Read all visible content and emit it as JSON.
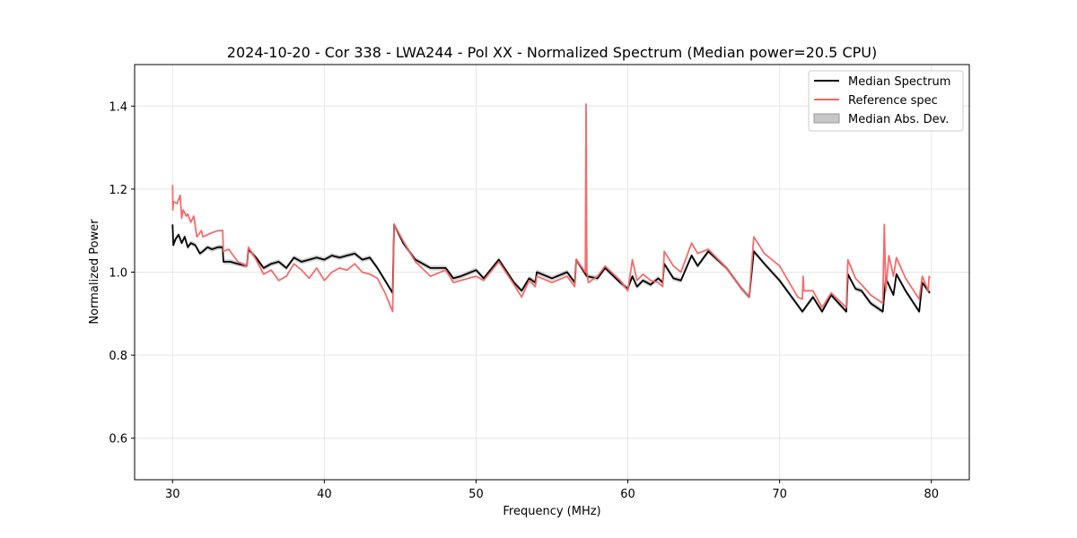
{
  "chart_data": {
    "type": "line",
    "title": "2024-10-20 - Cor 338 - LWA244 - Pol XX - Normalized Spectrum (Median power=20.5 CPU)",
    "xlabel": "Frequency (MHz)",
    "ylabel": "Normalized Power",
    "xlim": [
      27.5,
      82.5
    ],
    "ylim": [
      0.5,
      1.5
    ],
    "xticks": [
      30,
      40,
      50,
      60,
      70,
      80
    ],
    "yticks": [
      0.6,
      0.8,
      1.0,
      1.2,
      1.4
    ],
    "xtick_labels": [
      "30",
      "40",
      "50",
      "60",
      "70",
      "80"
    ],
    "ytick_labels": [
      "0.6",
      "0.8",
      "1.0",
      "1.2",
      "1.4"
    ],
    "grid": true,
    "legend_position": "top-right",
    "legend": [
      "Median Spectrum",
      "Reference spec",
      "Median Abs. Dev."
    ],
    "colors": {
      "median": "#000000",
      "reference": "#f46464",
      "mad_fill": "#aaaaaa"
    },
    "series": [
      {
        "name": "Median Spectrum",
        "x": [
          30,
          30.05,
          30.2,
          30.4,
          30.6,
          30.8,
          31.0,
          31.2,
          31.5,
          31.8,
          32.0,
          32.3,
          32.6,
          33.0,
          33.3,
          33.35,
          33.8,
          34.3,
          34.9,
          35.0,
          35.5,
          36.0,
          36.5,
          37.0,
          37.5,
          38.0,
          38.5,
          39.0,
          39.5,
          40.0,
          40.5,
          41.0,
          41.5,
          42.0,
          42.5,
          43.0,
          43.5,
          44.0,
          44.5,
          44.6,
          45.2,
          46.0,
          47.0,
          48.0,
          48.5,
          49.0,
          50.0,
          50.5,
          51.5,
          52.5,
          53.0,
          53.5,
          53.9,
          54.0,
          55.0,
          56.0,
          56.5,
          56.6,
          57.3,
          58.0,
          58.5,
          59.5,
          60.0,
          60.3,
          60.6,
          61.0,
          61.5,
          62.0,
          62.3,
          62.4,
          63.0,
          63.5,
          64.2,
          64.6,
          65.3,
          66.5,
          67.5,
          68.0,
          68.3,
          69.0,
          70.0,
          71.2,
          71.5,
          72.2,
          72.8,
          73.4,
          74.4,
          74.5,
          75.0,
          75.4,
          76.0,
          76.8,
          77.0,
          77.5,
          77.7,
          78.3,
          79.2,
          79.4,
          79.9
        ],
        "values": [
          1.115,
          1.065,
          1.08,
          1.09,
          1.07,
          1.085,
          1.06,
          1.07,
          1.065,
          1.045,
          1.05,
          1.06,
          1.055,
          1.06,
          1.06,
          1.025,
          1.025,
          1.02,
          1.015,
          1.055,
          1.035,
          1.01,
          1.02,
          1.025,
          1.01,
          1.035,
          1.025,
          1.03,
          1.035,
          1.03,
          1.04,
          1.035,
          1.04,
          1.045,
          1.03,
          1.035,
          1.01,
          0.98,
          0.95,
          1.115,
          1.07,
          1.03,
          1.01,
          1.01,
          0.985,
          0.99,
          1.005,
          0.985,
          1.03,
          0.975,
          0.955,
          0.985,
          0.975,
          1.0,
          0.985,
          1.0,
          0.975,
          1.03,
          0.99,
          0.985,
          1.01,
          0.975,
          0.96,
          0.99,
          0.965,
          0.98,
          0.97,
          0.985,
          0.975,
          1.02,
          0.985,
          0.98,
          1.04,
          1.015,
          1.05,
          1.01,
          0.96,
          0.94,
          1.05,
          1.02,
          0.98,
          0.92,
          0.905,
          0.94,
          0.905,
          0.945,
          0.905,
          0.995,
          0.96,
          0.955,
          0.925,
          0.905,
          0.985,
          0.945,
          0.995,
          0.955,
          0.905,
          0.975,
          0.95
        ],
        "mad": 0.006
      },
      {
        "name": "Reference spec",
        "x": [
          30,
          30.02,
          30.06,
          30.3,
          30.5,
          30.6,
          30.7,
          30.9,
          31.0,
          31.2,
          31.4,
          31.6,
          31.9,
          32.0,
          32.3,
          32.6,
          33.0,
          33.3,
          33.35,
          33.7,
          34.3,
          34.9,
          35.0,
          35.5,
          36.0,
          36.5,
          37.0,
          37.5,
          38.0,
          38.5,
          39.0,
          39.5,
          40.0,
          40.5,
          41.0,
          41.5,
          42.0,
          42.5,
          43.0,
          43.5,
          44.0,
          44.5,
          44.6,
          45.2,
          46.0,
          47.0,
          48.0,
          48.5,
          49.0,
          50.0,
          50.5,
          51.5,
          52.5,
          53.0,
          53.5,
          53.9,
          54.0,
          55.0,
          56.0,
          56.5,
          56.6,
          57.2,
          57.25,
          57.3,
          57.4,
          58.0,
          58.5,
          59.5,
          60.0,
          60.3,
          60.6,
          61.0,
          61.5,
          62.0,
          62.3,
          62.4,
          63.0,
          63.5,
          64.2,
          64.6,
          65.3,
          66.5,
          67.5,
          68.0,
          68.3,
          69.0,
          70.0,
          71.2,
          71.5,
          71.55,
          71.6,
          72.2,
          72.8,
          73.4,
          74.4,
          74.5,
          75.0,
          75.4,
          76.0,
          76.8,
          76.9,
          77.0,
          77.2,
          77.5,
          77.7,
          78.3,
          79.2,
          79.4,
          79.8,
          79.85,
          79.9
        ],
        "values": [
          1.21,
          1.15,
          1.17,
          1.165,
          1.185,
          1.13,
          1.15,
          1.135,
          1.14,
          1.12,
          1.135,
          1.085,
          1.1,
          1.085,
          1.09,
          1.095,
          1.1,
          1.1,
          1.05,
          1.055,
          1.025,
          1.015,
          1.06,
          1.03,
          0.995,
          1.005,
          0.98,
          0.99,
          1.02,
          1.005,
          0.985,
          1.01,
          0.98,
          1.0,
          1.01,
          1.005,
          1.02,
          1.0,
          0.995,
          0.985,
          0.95,
          0.905,
          1.115,
          1.075,
          1.025,
          0.99,
          1.005,
          0.975,
          0.98,
          0.99,
          0.98,
          1.025,
          0.97,
          0.94,
          0.98,
          0.965,
          0.99,
          0.975,
          0.99,
          0.965,
          1.03,
          1.0,
          1.405,
          1.0,
          0.975,
          0.99,
          1.015,
          0.98,
          0.955,
          1.03,
          0.98,
          0.995,
          0.98,
          0.975,
          0.965,
          1.05,
          1.015,
          1.0,
          1.07,
          1.045,
          1.055,
          1.01,
          0.96,
          0.94,
          1.085,
          1.045,
          1.015,
          0.94,
          0.935,
          0.99,
          0.955,
          0.955,
          0.915,
          0.95,
          0.915,
          1.03,
          0.985,
          0.97,
          0.945,
          0.925,
          1.115,
          0.955,
          1.04,
          0.99,
          1.035,
          0.985,
          0.935,
          0.99,
          0.955,
          0.99,
          0.985
        ]
      }
    ]
  }
}
